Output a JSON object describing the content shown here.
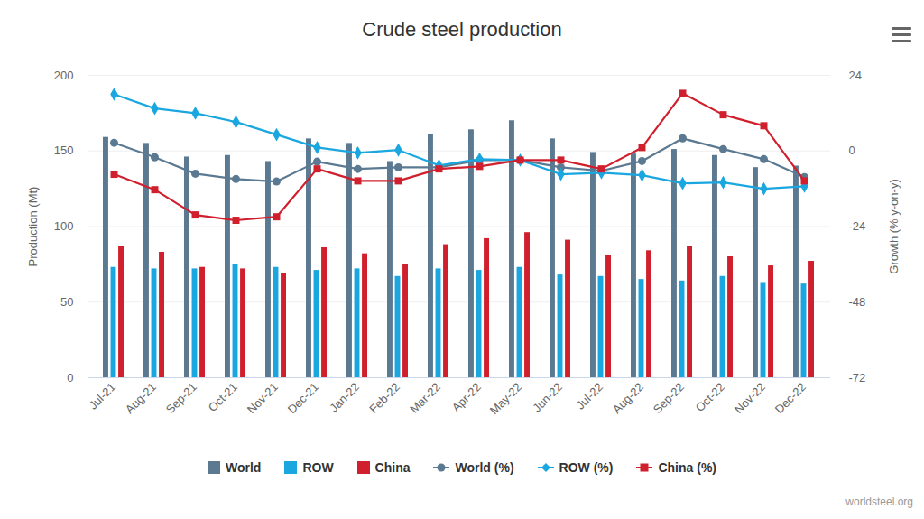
{
  "chart_data": {
    "type": "bar",
    "title": "Crude steel production",
    "ylabel": "Production (Mt)",
    "y2label": "Growth (% y-on-y)",
    "credit": "worldsteel.org",
    "categories": [
      "Jul-21",
      "Aug-21",
      "Sep-21",
      "Oct-21",
      "Nov-21",
      "Dec-21",
      "Jan-22",
      "Feb-22",
      "Mar-22",
      "Apr-22",
      "May-22",
      "Jun-22",
      "Jul-22",
      "Aug-22",
      "Sep-22",
      "Oct-22",
      "Nov-22",
      "Dec-22"
    ],
    "ylim": [
      0,
      200
    ],
    "yticks": [
      0,
      50,
      100,
      150,
      200
    ],
    "y2lim": [
      -72,
      24
    ],
    "y2ticks": [
      -72,
      -48,
      -24,
      0,
      24
    ],
    "grid": true,
    "legend": "bottom",
    "series": [
      {
        "name": "World",
        "type": "bar",
        "color": "#5b7a92",
        "values": [
          159,
          155,
          146,
          147,
          143,
          158,
          155,
          143,
          161,
          164,
          170,
          158,
          149,
          148,
          151,
          147,
          139,
          140
        ]
      },
      {
        "name": "ROW",
        "type": "bar",
        "color": "#1aa7e0",
        "values": [
          73,
          72,
          72,
          75,
          73,
          71,
          72,
          67,
          72,
          71,
          73,
          68,
          67,
          65,
          64,
          67,
          63,
          62
        ]
      },
      {
        "name": "China",
        "type": "bar",
        "color": "#d0202e",
        "values": [
          87,
          83,
          73,
          72,
          69,
          86,
          82,
          75,
          88,
          92,
          96,
          91,
          81,
          84,
          87,
          80,
          74,
          77
        ]
      },
      {
        "name": "World (%)",
        "type": "line",
        "axis": "y2",
        "color": "#5b7a92",
        "marker": "circle",
        "values": [
          2.6,
          -2,
          -7.2,
          -8.9,
          -9.7,
          -3.4,
          -5.7,
          -5.2,
          -5.2,
          -2.9,
          -2.9,
          -5.2,
          -6.3,
          -3.2,
          4,
          0.6,
          -2.6,
          -8.3
        ]
      },
      {
        "name": "ROW (%)",
        "type": "line",
        "axis": "y2",
        "color": "#1aa7e0",
        "marker": "diamond",
        "values": [
          18,
          13.5,
          12,
          9.2,
          5.2,
          1.1,
          -0.6,
          0.3,
          -4.6,
          -2.6,
          -2.9,
          -7.4,
          -6.9,
          -7.7,
          -10.3,
          -10,
          -12,
          -11.2
        ]
      },
      {
        "name": "China (%)",
        "type": "line",
        "axis": "y2",
        "color": "#d0202e",
        "marker": "square",
        "values": [
          -7.4,
          -12.3,
          -20.3,
          -22,
          -20.9,
          -5.7,
          -9.5,
          -9.5,
          -5.7,
          -4.9,
          -2.9,
          -2.9,
          -5.7,
          1.1,
          18.3,
          11.5,
          8,
          -9.5
        ]
      }
    ]
  }
}
